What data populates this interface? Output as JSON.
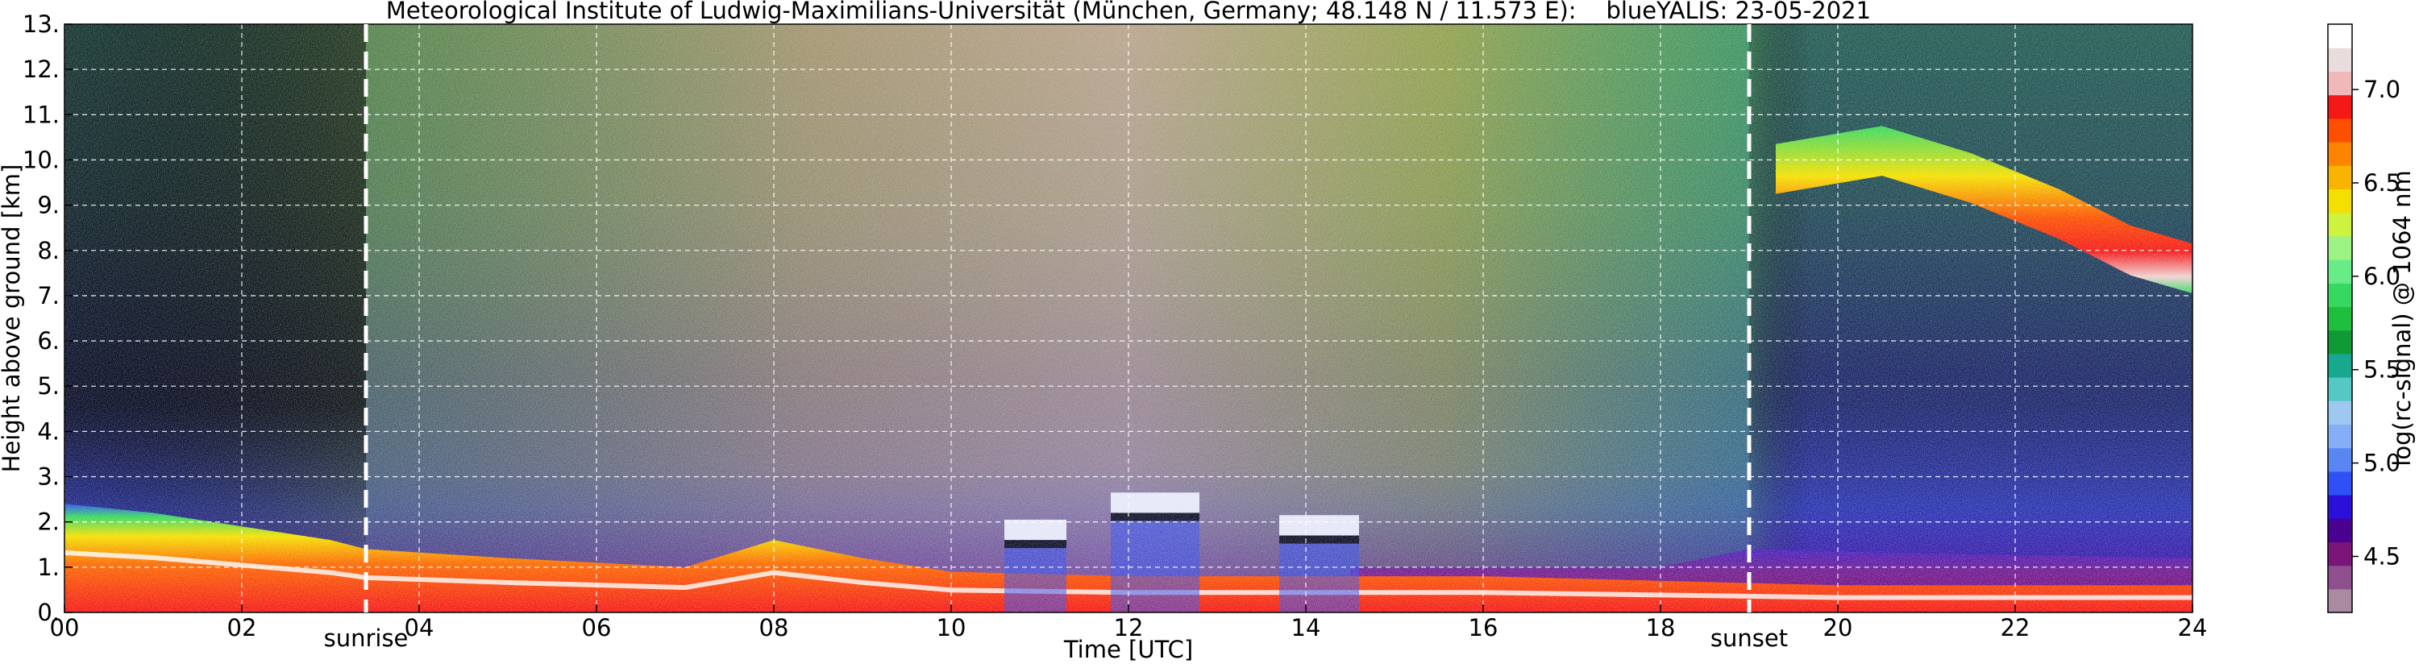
{
  "chart_data": {
    "type": "heatmap",
    "title": "Meteorological Institute of Ludwig-Maximilians-Universität (München, Germany; 48.148 N / 11.573 E):    blueYALIS: 23-05-2021",
    "xlabel": "Time [UTC]",
    "ylabel": "Height above ground [km]",
    "colorbar_label": "log(rc-signal) @ 1064 nm",
    "xlim": [
      0,
      24
    ],
    "ylim": [
      0,
      13
    ],
    "x_ticks": [
      {
        "value": 0,
        "label": "00"
      },
      {
        "value": 2,
        "label": "02"
      },
      {
        "value": 4,
        "label": "04"
      },
      {
        "value": 6,
        "label": "06"
      },
      {
        "value": 8,
        "label": "08"
      },
      {
        "value": 10,
        "label": "10"
      },
      {
        "value": 12,
        "label": "12"
      },
      {
        "value": 14,
        "label": "14"
      },
      {
        "value": 16,
        "label": "16"
      },
      {
        "value": 18,
        "label": "18"
      },
      {
        "value": 20,
        "label": "20"
      },
      {
        "value": 22,
        "label": "22"
      },
      {
        "value": 24,
        "label": "24"
      }
    ],
    "y_ticks": [
      {
        "value": 0,
        "label": "0."
      },
      {
        "value": 1,
        "label": "1."
      },
      {
        "value": 2,
        "label": "2."
      },
      {
        "value": 3,
        "label": "3."
      },
      {
        "value": 4,
        "label": "4."
      },
      {
        "value": 5,
        "label": "5."
      },
      {
        "value": 6,
        "label": "6."
      },
      {
        "value": 7,
        "label": "7."
      },
      {
        "value": 8,
        "label": "8."
      },
      {
        "value": 9,
        "label": "9."
      },
      {
        "value": 10,
        "label": "10."
      },
      {
        "value": 11,
        "label": "11."
      },
      {
        "value": 12,
        "label": "12."
      },
      {
        "value": 13,
        "label": "13."
      }
    ],
    "colorbar_range": [
      4.2,
      7.35
    ],
    "colorbar_ticks": [
      {
        "value": 4.5,
        "label": "4.5"
      },
      {
        "value": 5.0,
        "label": "5.0"
      },
      {
        "value": 5.5,
        "label": "5.5"
      },
      {
        "value": 6.0,
        "label": "6.0"
      },
      {
        "value": 6.5,
        "label": "6.5"
      },
      {
        "value": 7.0,
        "label": "7.0"
      }
    ],
    "colormap": [
      "#a88ba0",
      "#8e4f8e",
      "#7a167a",
      "#4a0090",
      "#2a10d8",
      "#2f50f4",
      "#5a86f4",
      "#86aef4",
      "#9ec8f0",
      "#56c8c4",
      "#18a890",
      "#109a36",
      "#1ebe3e",
      "#36d860",
      "#68ec88",
      "#9cf282",
      "#cdf240",
      "#f4e000",
      "#f8b400",
      "#fc8400",
      "#fc5000",
      "#f41818",
      "#f0b8b8",
      "#eadcdc",
      "#ffffff"
    ],
    "grid": true,
    "annotations": [
      {
        "label": "sunrise",
        "x": 3.4
      },
      {
        "label": "sunset",
        "x": 19.0
      }
    ],
    "features": {
      "boundary_layer": [
        [
          0,
          2.4
        ],
        [
          1,
          2.2
        ],
        [
          2,
          1.9
        ],
        [
          3,
          1.6
        ],
        [
          3.4,
          1.4
        ],
        [
          5,
          1.2
        ],
        [
          7,
          1.0
        ],
        [
          8,
          1.6
        ],
        [
          9,
          1.2
        ],
        [
          10,
          0.9
        ],
        [
          12,
          0.8
        ],
        [
          14,
          0.8
        ],
        [
          16,
          0.8
        ],
        [
          18,
          0.7
        ],
        [
          20,
          0.6
        ],
        [
          24,
          0.6
        ]
      ],
      "cirrus": [
        [
          19.3,
          9.8
        ],
        [
          20.5,
          10.2
        ],
        [
          21.5,
          9.6
        ],
        [
          22.5,
          8.8
        ],
        [
          23.3,
          8.0
        ],
        [
          24,
          7.6
        ]
      ],
      "clouds": [
        {
          "x0": 10.6,
          "x1": 11.3,
          "y": 1.7
        },
        {
          "x0": 11.8,
          "x1": 12.8,
          "y": 2.3
        },
        {
          "x0": 13.7,
          "x1": 14.6,
          "y": 1.8
        }
      ]
    }
  }
}
